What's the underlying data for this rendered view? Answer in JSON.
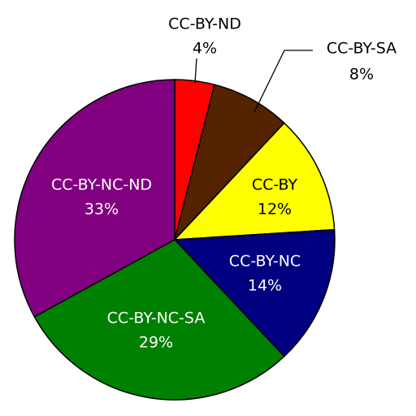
{
  "chart_data": {
    "type": "pie",
    "categories": [
      "CC-BY-ND",
      "CC-BY-SA",
      "CC-BY",
      "CC-BY-NC",
      "CC-BY-NC-SA",
      "CC-BY-NC-ND"
    ],
    "values": [
      4,
      8,
      12,
      14,
      29,
      33
    ],
    "value_labels": [
      "4%",
      "8%",
      "12%",
      "14%",
      "29%",
      "33%"
    ],
    "colors": [
      "#ff0000",
      "#552200",
      "#ffff00",
      "#000080",
      "#008000",
      "#800080"
    ]
  }
}
